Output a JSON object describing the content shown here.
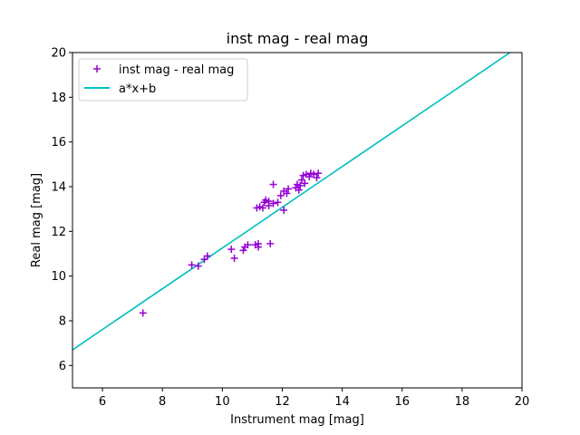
{
  "chart_data": {
    "type": "scatter",
    "title": "inst mag - real mag",
    "xlabel": "Instrument mag [mag]",
    "ylabel": "Real mag [mag]",
    "xlim": [
      5,
      20
    ],
    "ylim": [
      5,
      20
    ],
    "xticks": [
      6,
      8,
      10,
      12,
      14,
      16,
      18,
      20
    ],
    "yticks": [
      6,
      8,
      10,
      12,
      14,
      16,
      18,
      20
    ],
    "grid": false,
    "legend_position": "top-left",
    "series": [
      {
        "name": "inst mag - real mag",
        "kind": "scatter",
        "marker": "plus",
        "color": "#9400d3",
        "points": [
          [
            7.35,
            8.35
          ],
          [
            8.98,
            10.5
          ],
          [
            9.2,
            10.45
          ],
          [
            9.4,
            10.75
          ],
          [
            9.5,
            10.9
          ],
          [
            10.3,
            11.2
          ],
          [
            10.4,
            10.8
          ],
          [
            10.7,
            11.15
          ],
          [
            10.75,
            11.3
          ],
          [
            10.85,
            11.4
          ],
          [
            11.1,
            11.4
          ],
          [
            11.2,
            11.3
          ],
          [
            11.2,
            11.45
          ],
          [
            11.6,
            11.45
          ],
          [
            11.15,
            13.05
          ],
          [
            11.25,
            13.1
          ],
          [
            11.35,
            13.05
          ],
          [
            11.4,
            13.3
          ],
          [
            11.45,
            13.4
          ],
          [
            11.55,
            13.35
          ],
          [
            11.55,
            13.15
          ],
          [
            11.7,
            13.25
          ],
          [
            11.7,
            14.1
          ],
          [
            11.85,
            13.3
          ],
          [
            11.95,
            13.6
          ],
          [
            12.05,
            12.95
          ],
          [
            12.05,
            13.8
          ],
          [
            12.15,
            13.7
          ],
          [
            12.2,
            13.9
          ],
          [
            12.45,
            13.95
          ],
          [
            12.5,
            14.1
          ],
          [
            12.55,
            13.85
          ],
          [
            12.6,
            14.05
          ],
          [
            12.65,
            14.3
          ],
          [
            12.7,
            14.5
          ],
          [
            12.75,
            14.15
          ],
          [
            12.8,
            14.55
          ],
          [
            12.9,
            14.45
          ],
          [
            12.95,
            14.6
          ],
          [
            13.05,
            14.55
          ],
          [
            13.15,
            14.4
          ],
          [
            13.2,
            14.6
          ]
        ]
      },
      {
        "name": "a*x+b",
        "kind": "line",
        "color": "#00bfbf",
        "points": [
          [
            5,
            6.7
          ],
          [
            19.6,
            20.0
          ]
        ]
      }
    ]
  }
}
